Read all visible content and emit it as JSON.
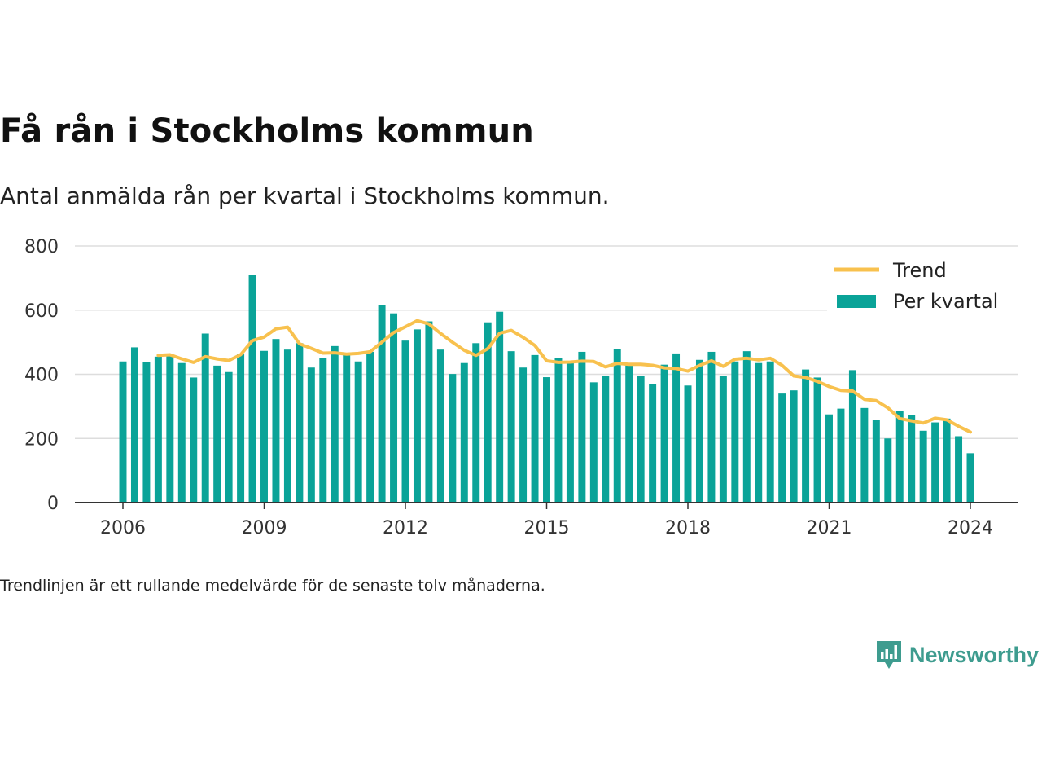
{
  "title": "Få rån i Stockholms kommun",
  "subtitle": "Antal anmälda rån per kvartal i Stockholms kommun.",
  "footnote": "Trendlinjen är ett rullande medelvärde för de senaste tolv månaderna.",
  "brand": {
    "name": "Newsworthy",
    "icon": "newsworthy-logo-icon"
  },
  "colors": {
    "bar": "#0aa398",
    "trend": "#f8c14e",
    "grid": "#dddddd",
    "axis": "#333333"
  },
  "chart_data": {
    "type": "bar",
    "xlabel": "",
    "ylabel": "",
    "ylim": [
      0,
      800
    ],
    "yticks": [
      0,
      200,
      400,
      600,
      800
    ],
    "xticks": [
      "2006",
      "2009",
      "2012",
      "2015",
      "2018",
      "2021",
      "2024"
    ],
    "x_start_year": 2006,
    "grid": true,
    "legend_position": "top-right",
    "series": [
      {
        "name": "Per kvartal",
        "type": "bar",
        "values": [
          440,
          484,
          437,
          455,
          462,
          435,
          390,
          527,
          427,
          407,
          462,
          711,
          473,
          510,
          477,
          497,
          421,
          450,
          488,
          462,
          440,
          470,
          617,
          590,
          505,
          540,
          565,
          477,
          401,
          435,
          497,
          562,
          595,
          472,
          421,
          460,
          391,
          450,
          440,
          470,
          375,
          395,
          480,
          435,
          395,
          370,
          430,
          465,
          365,
          445,
          470,
          396,
          440,
          472,
          435,
          440,
          340,
          350,
          415,
          390,
          275,
          293,
          413,
          295,
          258,
          200,
          285,
          272,
          224,
          250,
          262,
          207,
          154
        ]
      },
      {
        "name": "Trend",
        "type": "line",
        "values": [
          null,
          null,
          null,
          459,
          461,
          448,
          437,
          455,
          448,
          443,
          461,
          505,
          516,
          542,
          547,
          495,
          481,
          466,
          467,
          463,
          465,
          470,
          500,
          530,
          548,
          567,
          557,
          527,
          500,
          475,
          459,
          480,
          528,
          537,
          515,
          490,
          442,
          437,
          438,
          441,
          440,
          423,
          434,
          431,
          431,
          428,
          420,
          418,
          410,
          428,
          442,
          425,
          447,
          450,
          445,
          450,
          428,
          395,
          390,
          378,
          362,
          350,
          348,
          322,
          318,
          295,
          262,
          255,
          248,
          263,
          258,
          238,
          220
        ]
      }
    ]
  }
}
